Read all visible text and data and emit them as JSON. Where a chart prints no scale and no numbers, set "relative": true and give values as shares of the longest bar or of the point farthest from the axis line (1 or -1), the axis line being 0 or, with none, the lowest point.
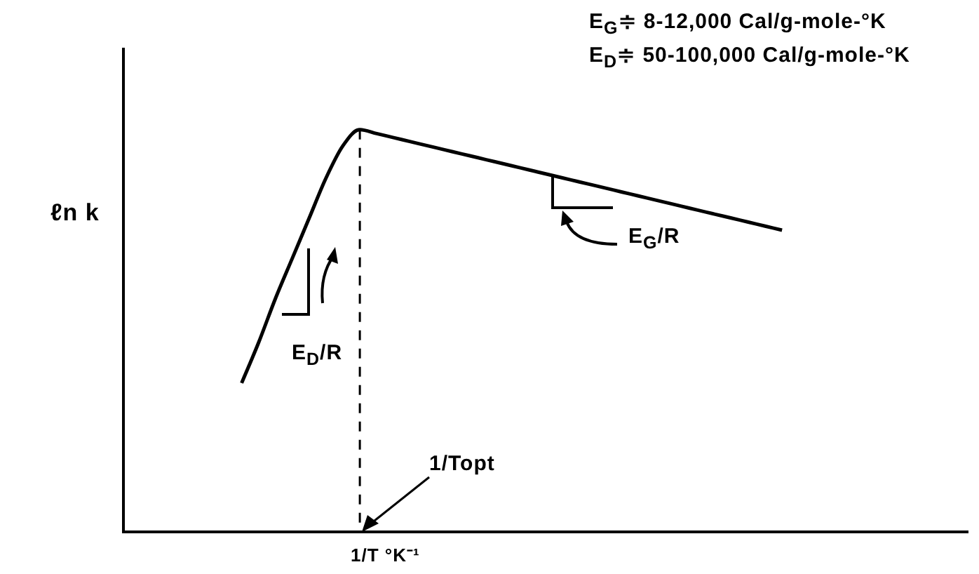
{
  "chart_data": {
    "type": "line",
    "relative": true,
    "ylabel": "ℓn k",
    "xlabel": "1/T °K⁻¹",
    "categories": [
      null,
      null,
      null,
      null,
      null,
      null,
      null,
      null,
      null,
      null,
      null,
      null,
      null,
      null,
      null,
      null,
      null,
      null,
      null,
      null,
      null,
      null,
      null,
      null,
      null,
      null,
      null,
      null,
      null,
      null,
      null,
      null,
      null,
      null,
      null,
      null,
      null,
      null,
      null,
      null,
      null,
      null,
      null,
      null,
      null,
      null,
      null,
      null,
      null,
      null,
      null
    ],
    "series": [
      {
        "color": "#000000",
        "values": [
          null,
          null,
          null,
          null,
          null,
          null,
          null,
          0.37,
          0.47,
          0.58,
          0.68,
          0.78,
          0.88,
          0.96,
          1,
          0.99,
          0.98,
          0.97,
          0.96,
          0.95,
          0.94,
          0.93,
          0.92,
          0.91,
          0.9,
          0.89,
          0.88,
          0.87,
          0.86,
          0.85,
          0.84,
          0.83,
          0.82,
          0.81,
          0.8,
          0.79,
          0.78,
          0.77,
          0.76,
          0.75,
          null,
          null,
          null,
          null,
          null,
          null,
          null,
          null,
          null,
          null,
          null
        ]
      }
    ],
    "tick_labels": false,
    "annotations": [
      "E$_{G}$≑ 8-12,000 Cal/g-mole-°K",
      "E$_{D}$≑ 50-100,000 Cal/g-mole-°K",
      "E$_{D}$/R",
      "E$_{G}$/R",
      "1/Topt"
    ]
  }
}
